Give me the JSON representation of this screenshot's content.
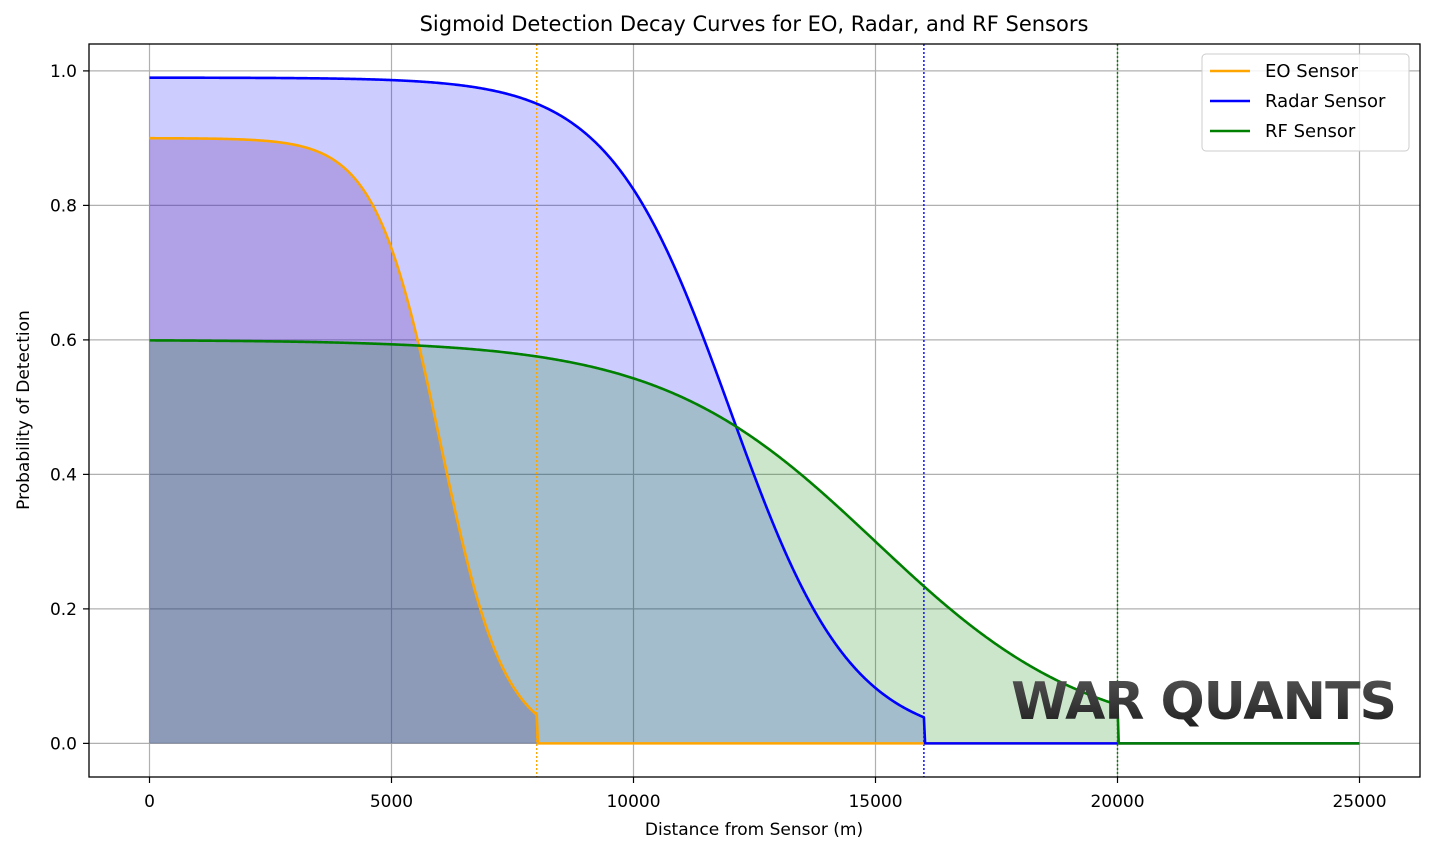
{
  "chart_data": {
    "type": "line",
    "title": "Sigmoid Detection Decay Curves for EO, Radar, and RF Sensors",
    "xlabel": "Distance from Sensor (m)",
    "ylabel": "Probability of Detection",
    "xlim": [
      -1250,
      26250
    ],
    "ylim": [
      -0.05,
      1.04
    ],
    "xticks": [
      0,
      5000,
      10000,
      15000,
      20000,
      25000
    ],
    "xtick_labels": [
      "0",
      "5000",
      "10000",
      "15000",
      "20000",
      "25000"
    ],
    "yticks": [
      0.0,
      0.2,
      0.4,
      0.6,
      0.8,
      1.0
    ],
    "ytick_labels": [
      "0.0",
      "0.2",
      "0.4",
      "0.6",
      "0.8",
      "1.0"
    ],
    "grid": true,
    "legend_position": "top-right",
    "x_end": 25000,
    "series": [
      {
        "name": "EO Sensor",
        "color": "#FFA500",
        "fill_color": "#7B2F8E",
        "fill_opacity": 0.25,
        "pmax": 0.9,
        "midpoint": 6000,
        "steepness": 0.0015,
        "cutoff": 8000
      },
      {
        "name": "Radar Sensor",
        "color": "#0000FF",
        "fill_color": "#0000FF",
        "fill_opacity": 0.2,
        "pmax": 0.99,
        "midpoint": 12000,
        "steepness": 0.0008,
        "cutoff": 16000
      },
      {
        "name": "RF Sensor",
        "color": "#008000",
        "fill_color": "#008000",
        "fill_opacity": 0.2,
        "pmax": 0.6,
        "midpoint": 15000,
        "steepness": 0.00045,
        "cutoff": 20000
      }
    ]
  },
  "watermark": {
    "text": "WAR QUANTS"
  }
}
